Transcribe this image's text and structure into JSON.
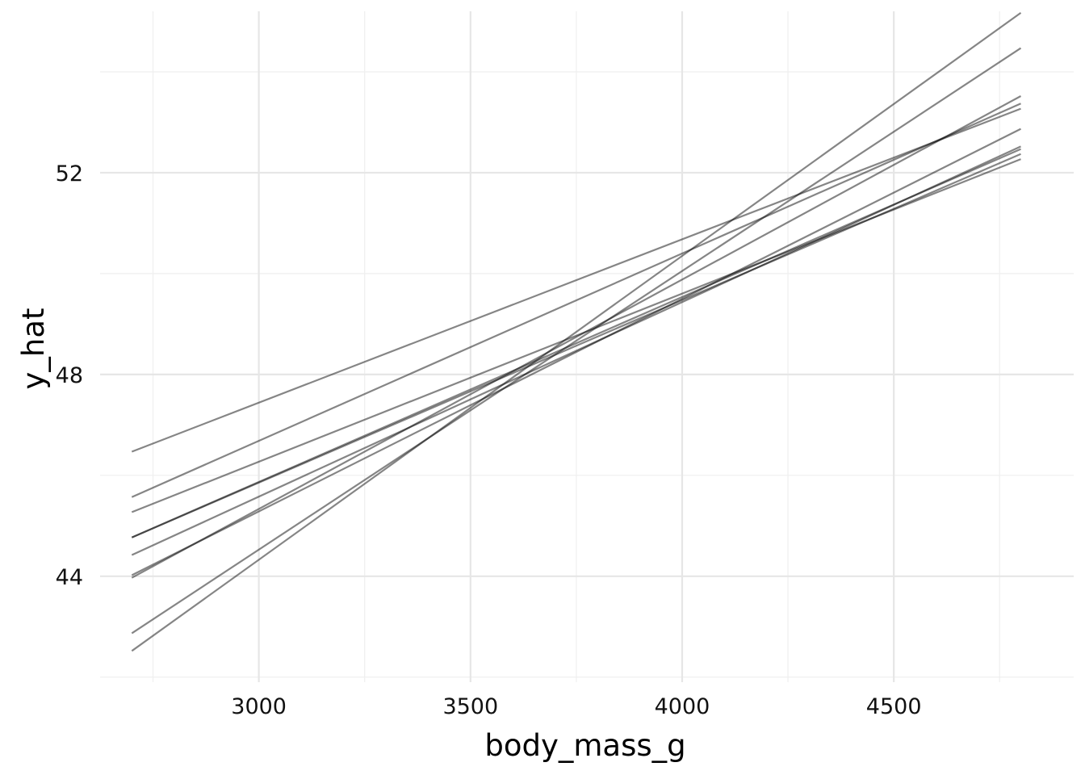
{
  "chart_data": {
    "type": "line",
    "title": "",
    "xlabel": "body_mass_g",
    "ylabel": "y_hat",
    "xlim": [
      2625,
      4925
    ],
    "ylim": [
      41.9,
      55.2
    ],
    "x_ticks": [
      3000,
      3500,
      4000,
      4500
    ],
    "y_ticks": [
      44,
      48,
      52
    ],
    "x_minor_ticks": [
      2750,
      3250,
      3750,
      4250,
      4750
    ],
    "y_minor_ticks": [
      42,
      46,
      50,
      54
    ],
    "grid": true,
    "legend": "none",
    "line_color": "#000000",
    "series": [
      {
        "x": [
          2700,
          4800
        ],
        "y": [
          46.47,
          53.27
        ]
      },
      {
        "x": [
          2700,
          4800
        ],
        "y": [
          45.57,
          53.37
        ]
      },
      {
        "x": [
          2700,
          4800
        ],
        "y": [
          45.27,
          52.27
        ]
      },
      {
        "x": [
          2700,
          4800
        ],
        "y": [
          44.77,
          52.37
        ]
      },
      {
        "x": [
          2700,
          4800
        ],
        "y": [
          44.77,
          52.47
        ]
      },
      {
        "x": [
          2700,
          4800
        ],
        "y": [
          44.42,
          52.52
        ]
      },
      {
        "x": [
          2700,
          4800
        ],
        "y": [
          44.02,
          52.87
        ]
      },
      {
        "x": [
          2700,
          4800
        ],
        "y": [
          43.97,
          53.52
        ]
      },
      {
        "x": [
          2700,
          4800
        ],
        "y": [
          42.87,
          54.47
        ]
      },
      {
        "x": [
          2700,
          4800
        ],
        "y": [
          42.52,
          55.17
        ]
      }
    ]
  }
}
